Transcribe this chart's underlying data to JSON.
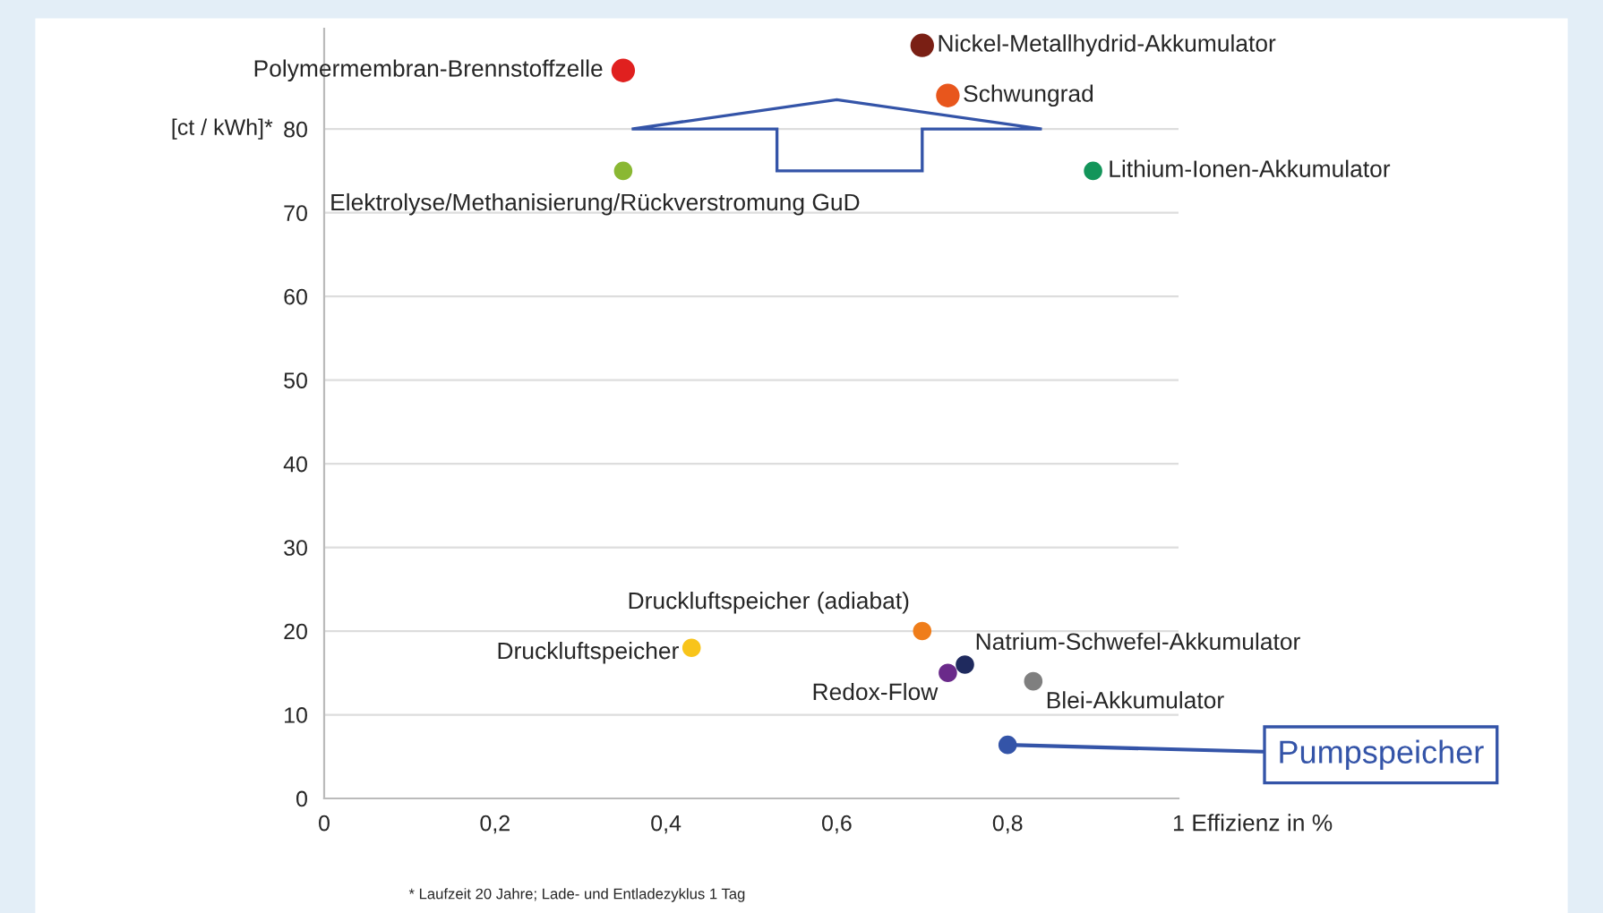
{
  "chart_data": {
    "type": "scatter",
    "ylabel": "[ct / kWh]*",
    "xlabel": "Effizienz in %",
    "series": [
      {
        "name": "Polymermembran-Brennstoffzelle",
        "color": "#e0201f",
        "x": [
          0.35
        ],
        "values": [
          87
        ]
      },
      {
        "name": "Nickel-Metallhydrid-Akkumulator",
        "color": "#7a1f14",
        "x": [
          0.7
        ],
        "values": [
          90
        ]
      },
      {
        "name": "Schwungrad",
        "color": "#e8561c",
        "x": [
          0.73
        ],
        "values": [
          84
        ]
      },
      {
        "name": "Elektrolyse/Methanisierung/Rückverstromung GuD",
        "color": "#8ab833",
        "x": [
          0.35
        ],
        "values": [
          75
        ]
      },
      {
        "name": "Lithium-Ionen-Akkumulator",
        "color": "#13955a",
        "x": [
          0.9
        ],
        "values": [
          75
        ]
      },
      {
        "name": "Druckluftspeicher (adiabat)",
        "color": "#ef7d1a",
        "x": [
          0.7
        ],
        "values": [
          20
        ]
      },
      {
        "name": "Druckluftspeicher",
        "color": "#f8c41a",
        "x": [
          0.43
        ],
        "values": [
          18
        ]
      },
      {
        "name": "Natrium-Schwefel-Akkumulator",
        "color": "#1f2a5e",
        "x": [
          0.75
        ],
        "values": [
          16
        ]
      },
      {
        "name": "Redox-Flow",
        "color": "#6a2a8a",
        "x": [
          0.73
        ],
        "values": [
          15
        ]
      },
      {
        "name": "Blei-Akkumulator",
        "color": "#7f7f7f",
        "x": [
          0.83
        ],
        "values": [
          14
        ]
      },
      {
        "name": "Pumpspeicher",
        "color": "#3454a8",
        "x": [
          0.8
        ],
        "values": [
          6.4
        ]
      }
    ],
    "xlim": [
      0,
      1
    ],
    "xticks": [
      0,
      {
        "value": 0.2,
        "label": "0,2"
      },
      {
        "value": 0.4,
        "label": "0,4"
      },
      {
        "value": 0.6,
        "label": "0,6"
      },
      {
        "value": 0.8,
        "label": "0,8"
      },
      1
    ],
    "ylim": [
      0,
      92
    ],
    "yticks": [
      0,
      10,
      20,
      30,
      40,
      50,
      60,
      70,
      80
    ],
    "grid": "y",
    "marker": "circle",
    "annotations": [
      "* Laufzeit 20 Jahre; Lade- und Entladezyklus 1 Tag"
    ]
  }
}
